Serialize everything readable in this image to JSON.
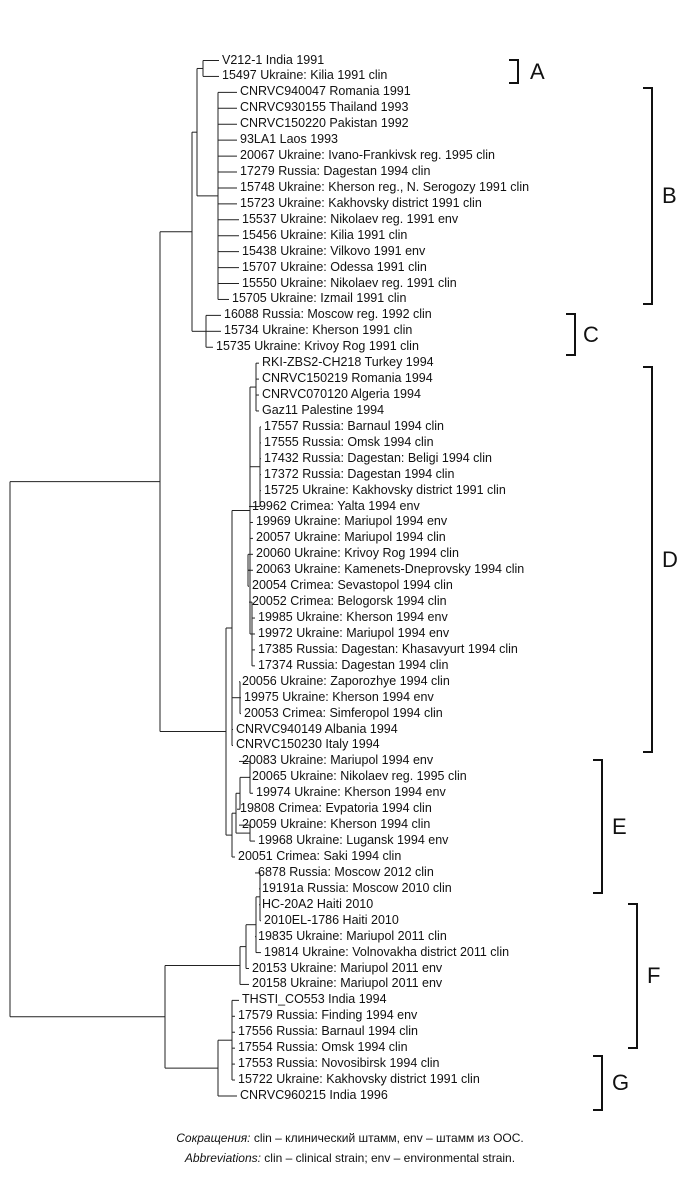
{
  "leaves": [
    "V212-1 India 1991",
    "15497 Ukraine: Kilia 1991 clin",
    "CNRVC940047 Romania 1991",
    "CNRVC930155 Thailand 1993",
    "CNRVC150220 Pakistan 1992",
    "93LA1 Laos 1993",
    "20067 Ukraine: Ivano-Frankivsk reg. 1995 clin",
    "17279 Russia: Dagestan 1994 clin",
    "15748 Ukraine: Kherson reg., N. Serogozy 1991 clin",
    "15723 Ukraine: Kakhovsky district 1991 clin",
    "15537 Ukraine: Nikolaev reg. 1991 env",
    "15456 Ukraine: Kilia 1991 clin",
    "15438 Ukraine: Vilkovo 1991 env",
    "15707 Ukraine: Odessa 1991 clin",
    "15550 Ukraine: Nikolaev reg. 1991 clin",
    "15705 Ukraine: Izmail 1991 clin",
    "16088 Russia: Moscow reg. 1992 clin",
    "15734 Ukraine: Kherson 1991 clin",
    "15735 Ukraine: Krivoy Rog 1991 clin",
    "RKI-ZBS2-CH218 Turkey 1994",
    "CNRVC150219 Romania 1994",
    "CNRVC070120 Algeria 1994",
    "Gaz11 Palestine 1994",
    "17557 Russia: Barnaul 1994 clin",
    "17555 Russia: Omsk 1994 clin",
    "17432 Russia: Dagestan: Beligi 1994 clin",
    "17372 Russia: Dagestan 1994 clin",
    "15725 Ukraine: Kakhovsky district 1991 clin",
    "19962 Crimea: Yalta 1994 env",
    "19969 Ukraine: Mariupol 1994 env",
    "20057 Ukraine: Mariupol 1994 clin",
    "20060 Ukraine: Krivoy Rog 1994 clin",
    "20063 Ukraine: Kamenets-Dneprovsky 1994 clin",
    "20054 Crimea: Sevastopol 1994 clin",
    "20052 Crimea: Belogorsk 1994 clin",
    "19985 Ukraine: Kherson 1994 env",
    "19972 Ukraine: Mariupol 1994 env",
    "17385 Russia: Dagestan: Khasavyurt 1994 clin",
    "17374 Russia: Dagestan 1994 clin",
    "20056 Ukraine: Zaporozhye 1994 clin",
    "19975 Ukraine: Kherson 1994 env",
    "20053 Crimea: Simferopol 1994 clin",
    "CNRVC940149 Albania 1994",
    "CNRVC150230 Italy 1994",
    "20083 Ukraine: Mariupol 1994 env",
    "20065 Ukraine: Nikolaev reg. 1995 clin",
    "19974 Ukraine: Kherson 1994 env",
    "19808 Crimea: Evpatoria 1994 clin",
    "20059 Ukraine: Kherson 1994 clin",
    "19968 Ukraine: Lugansk 1994 env",
    "20051 Crimea: Saki 1994 clin",
    "6878 Russia: Moscow 2012 clin",
    "19191a Russia: Moscow 2010 clin",
    "HC-20A2 Haiti 2010",
    "2010EL-1786 Haiti 2010",
    "19835 Ukraine: Mariupol 2011 clin",
    "19814 Ukraine: Volnovakha district 2011 clin",
    "20153 Ukraine: Mariupol 2011 env",
    "20158 Ukraine: Mariupol 2011 env",
    "THSTI_CO553 India 1994",
    "17579 Russia: Finding 1994 env",
    "17556 Russia: Barnaul 1994 clin",
    "17554 Russia: Omsk 1994 clin",
    "17553 Russia: Novosibirsk 1994 clin",
    "15722 Ukraine: Kakhovsky district 1991 clin",
    "CNRVC960215 India 1996"
  ],
  "clades": [
    {
      "letter": "A"
    },
    {
      "letter": "B"
    },
    {
      "letter": "C"
    },
    {
      "letter": "D"
    },
    {
      "letter": "E"
    },
    {
      "letter": "F"
    },
    {
      "letter": "G"
    }
  ],
  "footnote": {
    "ru_label": "Сокращения:",
    "ru_text": " clin – клинический штамм, env – штамм из ООС.",
    "en_label": "Abbreviations:",
    "en_text": " clin – clinical strain; env – environmental strain."
  }
}
